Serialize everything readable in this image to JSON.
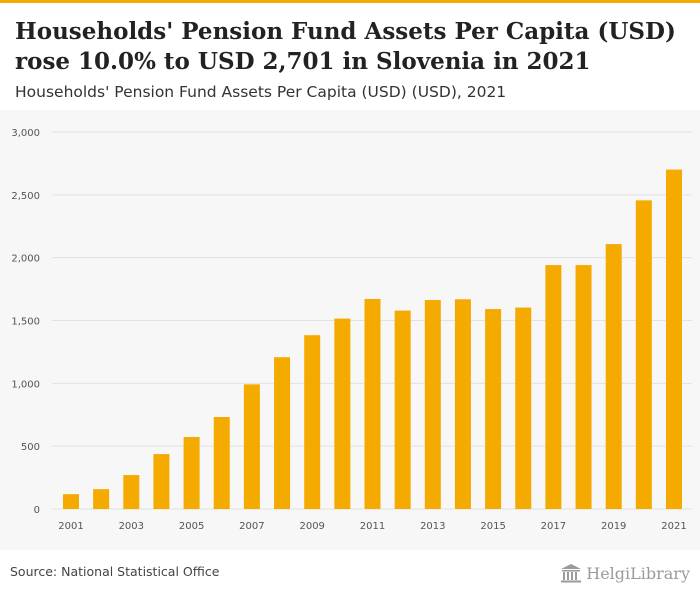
{
  "header": {
    "title_line1": "Households' Pension Fund Assets Per Capita (USD)",
    "title_line2": "rose 10.0% to USD 2,701 in Slovenia in 2021",
    "subtitle": "Households' Pension Fund Assets Per Capita (USD) (USD), 2021"
  },
  "footer": {
    "source": "Source: National Statistical Office",
    "logo_text": "HelgiLibrary"
  },
  "colors": {
    "bar": "#f5aa00",
    "accent": "#f5aa00",
    "grid": "#e2e2e2",
    "tick_label": "#555555"
  },
  "chart_data": {
    "type": "bar",
    "title": "Households' Pension Fund Assets Per Capita (USD) (USD), 2021",
    "xlabel": "",
    "ylabel": "",
    "categories": [
      "2001",
      "2002",
      "2003",
      "2004",
      "2005",
      "2006",
      "2007",
      "2008",
      "2009",
      "2010",
      "2011",
      "2012",
      "2013",
      "2014",
      "2015",
      "2016",
      "2017",
      "2018",
      "2019",
      "2020",
      "2021"
    ],
    "x_tick_labels": [
      "2001",
      "2003",
      "2005",
      "2007",
      "2009",
      "2011",
      "2013",
      "2015",
      "2017",
      "2019",
      "2021"
    ],
    "values": [
      118,
      158,
      270,
      437,
      573,
      732,
      992,
      1208,
      1383,
      1515,
      1671,
      1579,
      1663,
      1669,
      1591,
      1603,
      1941,
      1941,
      2108,
      2456,
      2701
    ],
    "ylim": [
      0,
      3000
    ],
    "y_ticks": [
      0,
      500,
      1000,
      1500,
      2000,
      2500,
      3000
    ],
    "y_tick_labels": [
      "0",
      "500",
      "1,000",
      "1,500",
      "2,000",
      "2,500",
      "3,000"
    ],
    "grid": true,
    "legend": "none"
  }
}
